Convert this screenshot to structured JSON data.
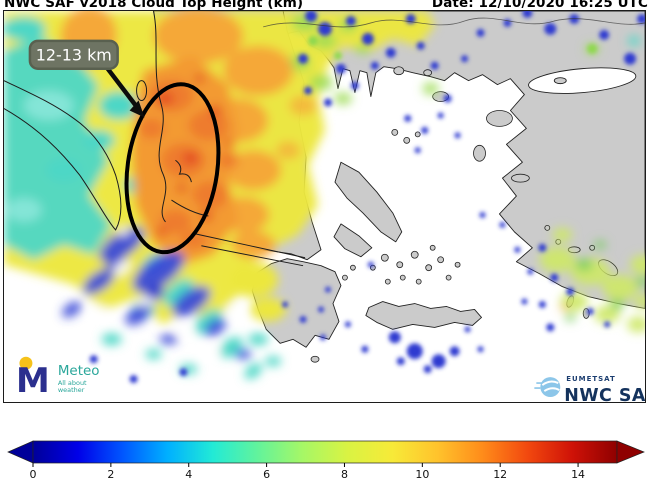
{
  "header": {
    "title": "NWC SAF v2018 Cloud Top Height (km)",
    "date": "Date: 12/10/2020 16:25 UTC"
  },
  "map": {
    "annotation_label": "12-13 km"
  },
  "logos": {
    "meteo": {
      "name": "Meteo",
      "monogram": "M",
      "tagline1": "All about",
      "tagline2": "weather",
      "brand_blue": "#2b2f8e",
      "brand_teal": "#2ba79b",
      "dot_yellow": "#f6c21a"
    },
    "nwcsaf": {
      "org": "EUMETSAT",
      "name": "NWC SAF",
      "navy": "#14325c",
      "icon_blue": "#8cc6e9"
    }
  },
  "colorbar": {
    "unit": "km",
    "min": 0,
    "max": 15,
    "ticks": [
      0,
      2,
      4,
      6,
      8,
      10,
      12,
      14
    ],
    "gradient": [
      "#000099",
      "#0000e8",
      "#0057ff",
      "#00b0ff",
      "#22ead6",
      "#62f39c",
      "#a6f766",
      "#d9f343",
      "#f7ea38",
      "#ffc32c",
      "#ff8c1a",
      "#f2490f",
      "#cf1207",
      "#8f0000"
    ]
  }
}
